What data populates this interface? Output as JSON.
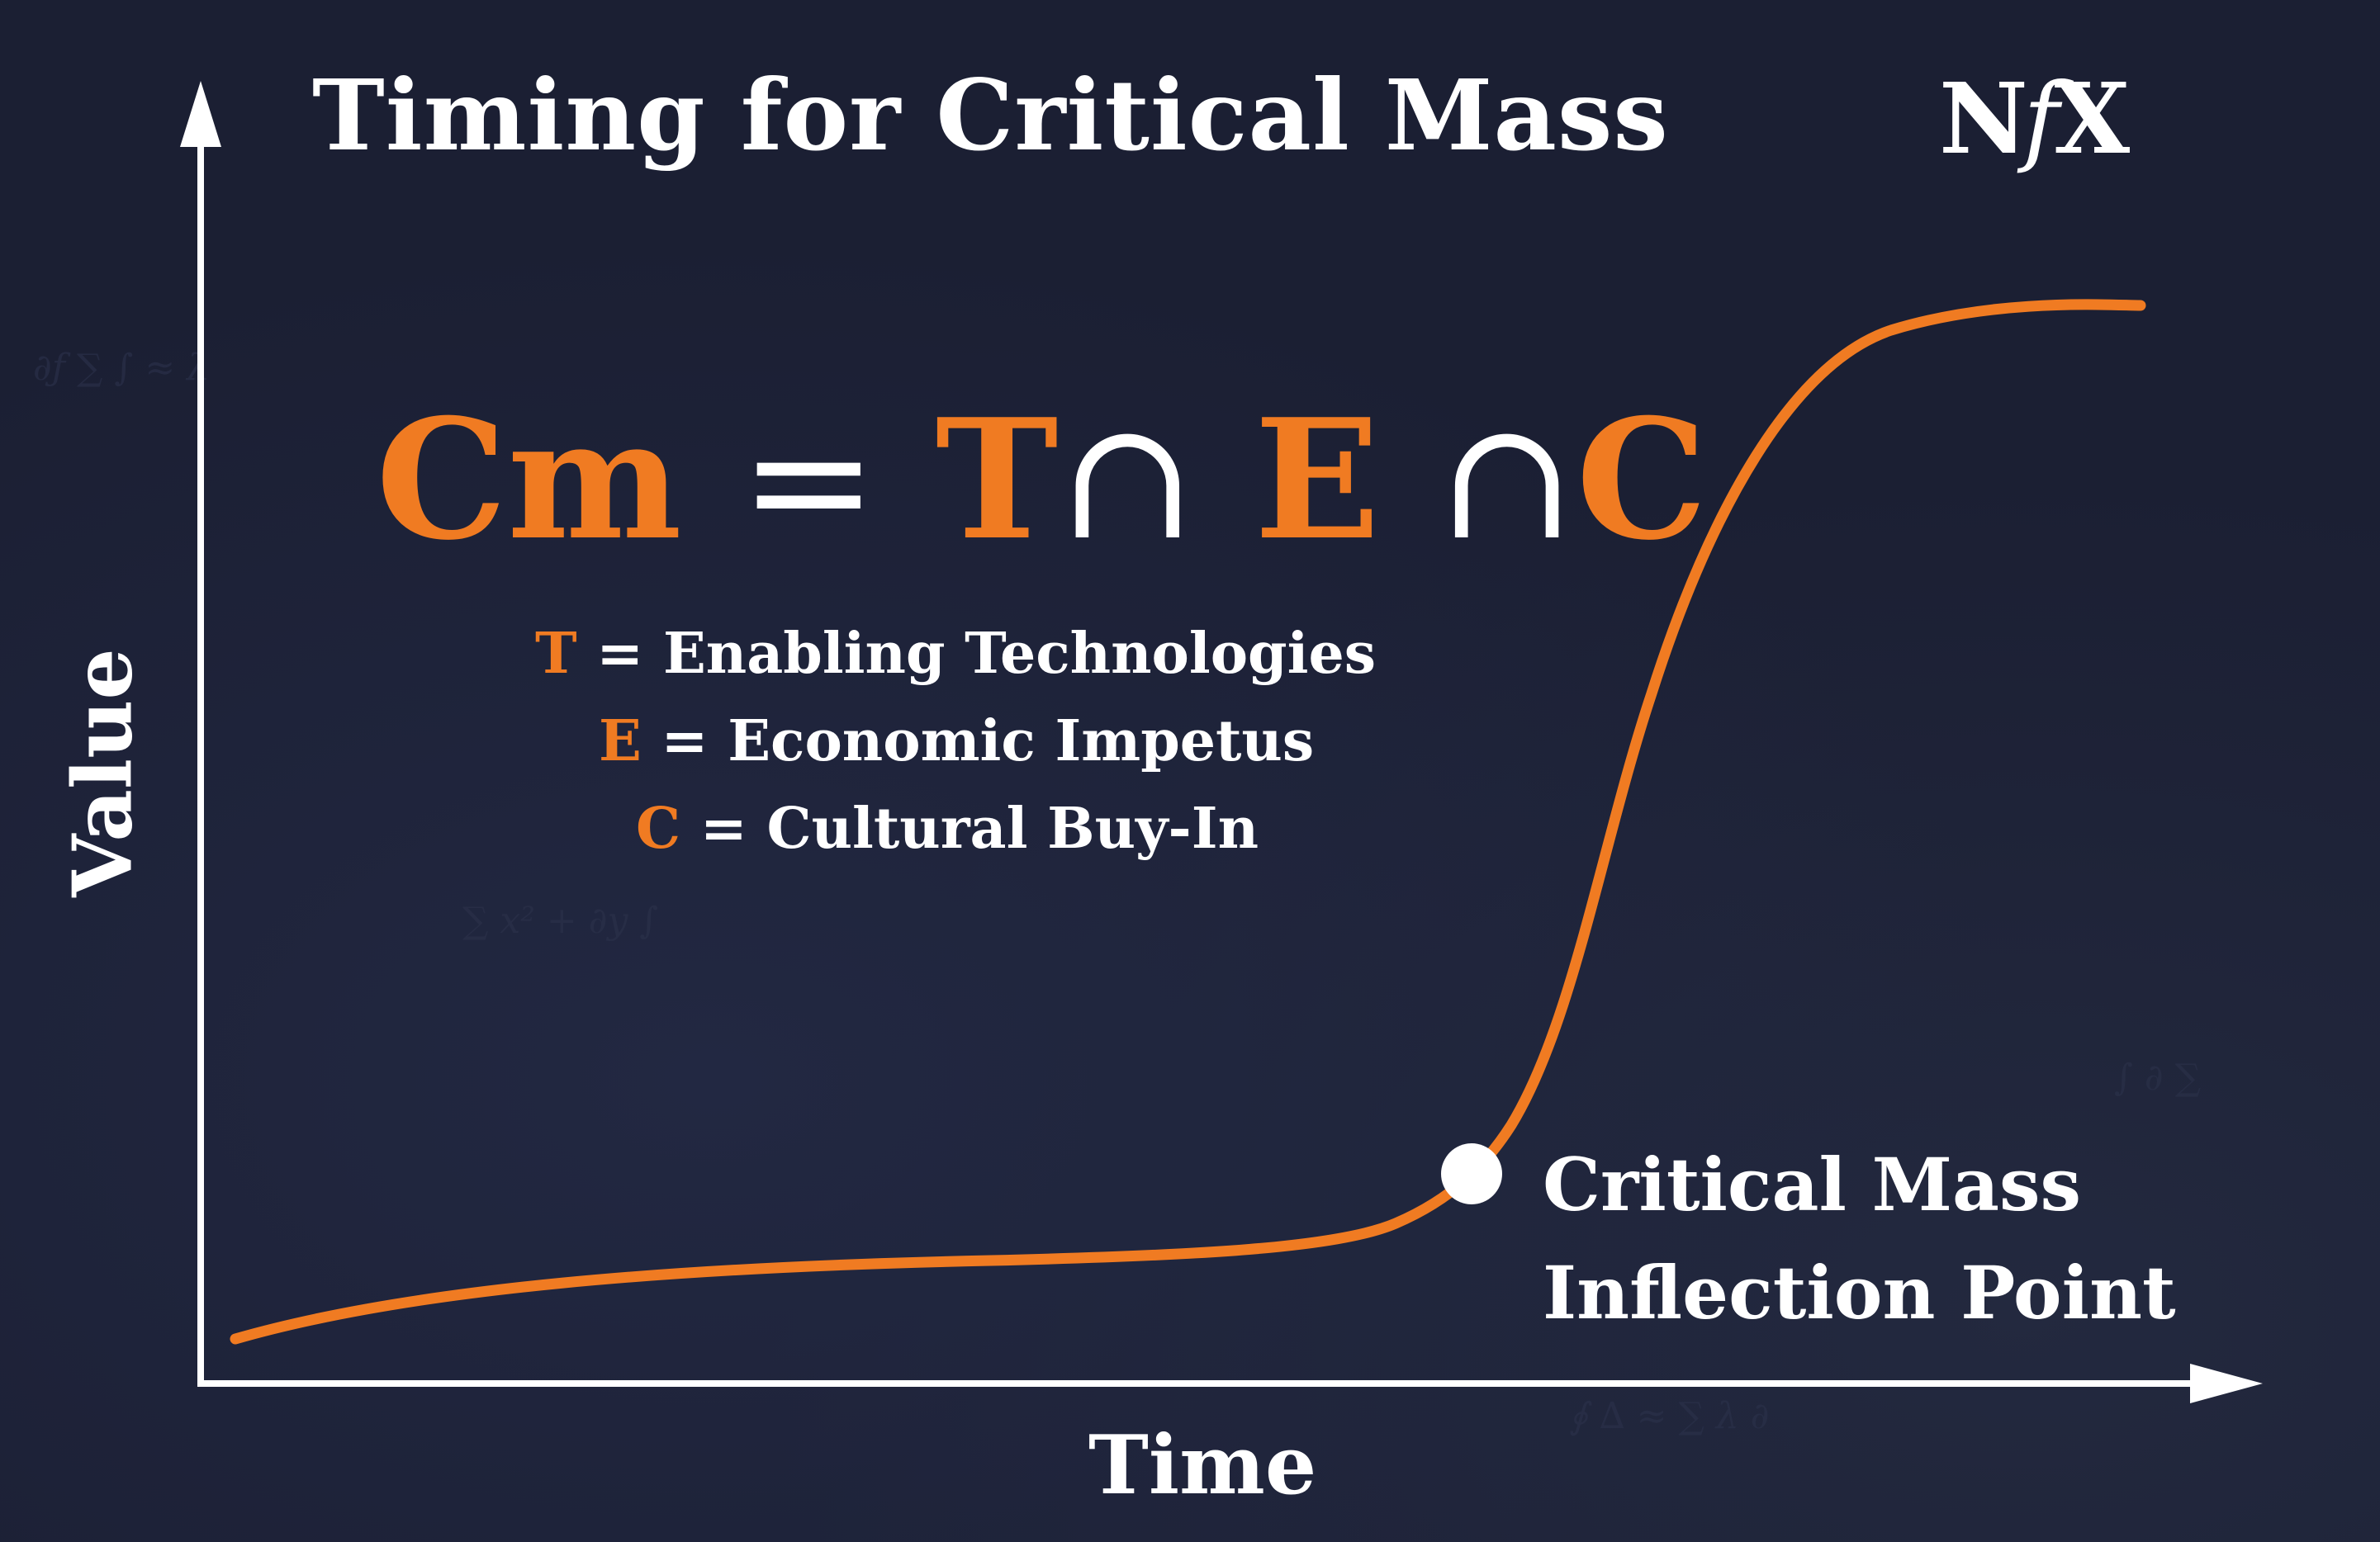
{
  "title": "Timing for Critical Mass",
  "logo": {
    "left": "N",
    "middle": "f",
    "right": "X"
  },
  "formula": {
    "lhs": "Cm",
    "equals": "=",
    "terms": [
      "T",
      "E",
      "C"
    ],
    "operator": "∩"
  },
  "definitions": [
    {
      "key": "T",
      "sep": "=",
      "text": "Enabling Technologies"
    },
    {
      "key": "E",
      "sep": "=",
      "text": "Economic Impetus"
    },
    {
      "key": "C",
      "sep": "=",
      "text": "Cultural Buy-In"
    }
  ],
  "axes": {
    "x_label": "Time",
    "y_label": "Value"
  },
  "inflection": {
    "line1": "Critical Mass",
    "line2": "Inflection Point"
  },
  "colors": {
    "background": "#1b1f33",
    "accent": "#f07b22",
    "text": "#ffffff"
  }
}
